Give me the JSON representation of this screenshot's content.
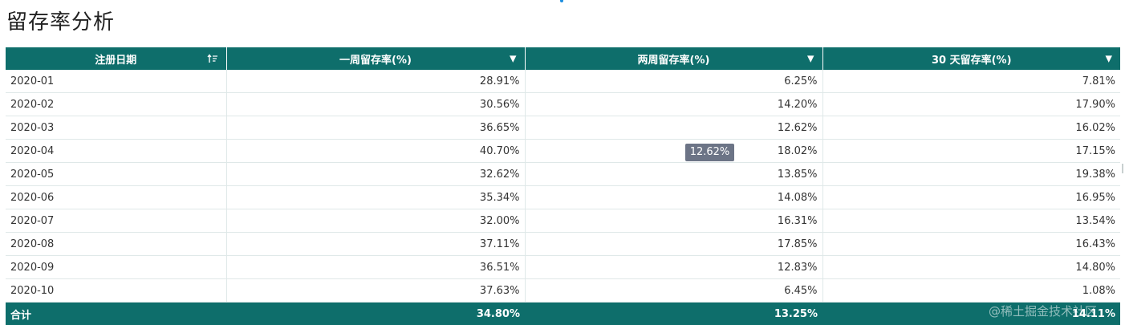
{
  "page": {
    "title": "留存率分析"
  },
  "table": {
    "columns": [
      {
        "label": "注册日期",
        "icon": "sort-icon"
      },
      {
        "label": "一周留存率(%)",
        "icon": "caret-down-icon"
      },
      {
        "label": "两周留存率(%)",
        "icon": "caret-down-icon"
      },
      {
        "label": "30 天留存率(%)",
        "icon": "caret-down-icon"
      }
    ],
    "rows": [
      {
        "date": "2020-01",
        "w1": "28.91%",
        "w2": "6.25%",
        "d30": "7.81%"
      },
      {
        "date": "2020-02",
        "w1": "30.56%",
        "w2": "14.20%",
        "d30": "17.90%"
      },
      {
        "date": "2020-03",
        "w1": "36.65%",
        "w2": "12.62%",
        "d30": "16.02%"
      },
      {
        "date": "2020-04",
        "w1": "40.70%",
        "w2": "18.02%",
        "d30": "17.15%"
      },
      {
        "date": "2020-05",
        "w1": "32.62%",
        "w2": "13.85%",
        "d30": "19.38%"
      },
      {
        "date": "2020-06",
        "w1": "35.34%",
        "w2": "14.08%",
        "d30": "16.95%"
      },
      {
        "date": "2020-07",
        "w1": "32.00%",
        "w2": "16.31%",
        "d30": "13.54%"
      },
      {
        "date": "2020-08",
        "w1": "37.11%",
        "w2": "17.85%",
        "d30": "16.43%"
      },
      {
        "date": "2020-09",
        "w1": "36.51%",
        "w2": "12.83%",
        "d30": "14.80%"
      },
      {
        "date": "2020-10",
        "w1": "37.63%",
        "w2": "6.45%",
        "d30": "1.08%"
      }
    ],
    "total": {
      "label": "合计",
      "w1": "34.80%",
      "w2": "13.25%",
      "d30": "14.11%"
    }
  },
  "tooltip": {
    "text": "12.62%"
  },
  "watermark": {
    "text": "@稀土掘金技术社区"
  },
  "colors": {
    "header_bg": "#0e6e6b",
    "tooltip_bg": "#6c7486"
  }
}
